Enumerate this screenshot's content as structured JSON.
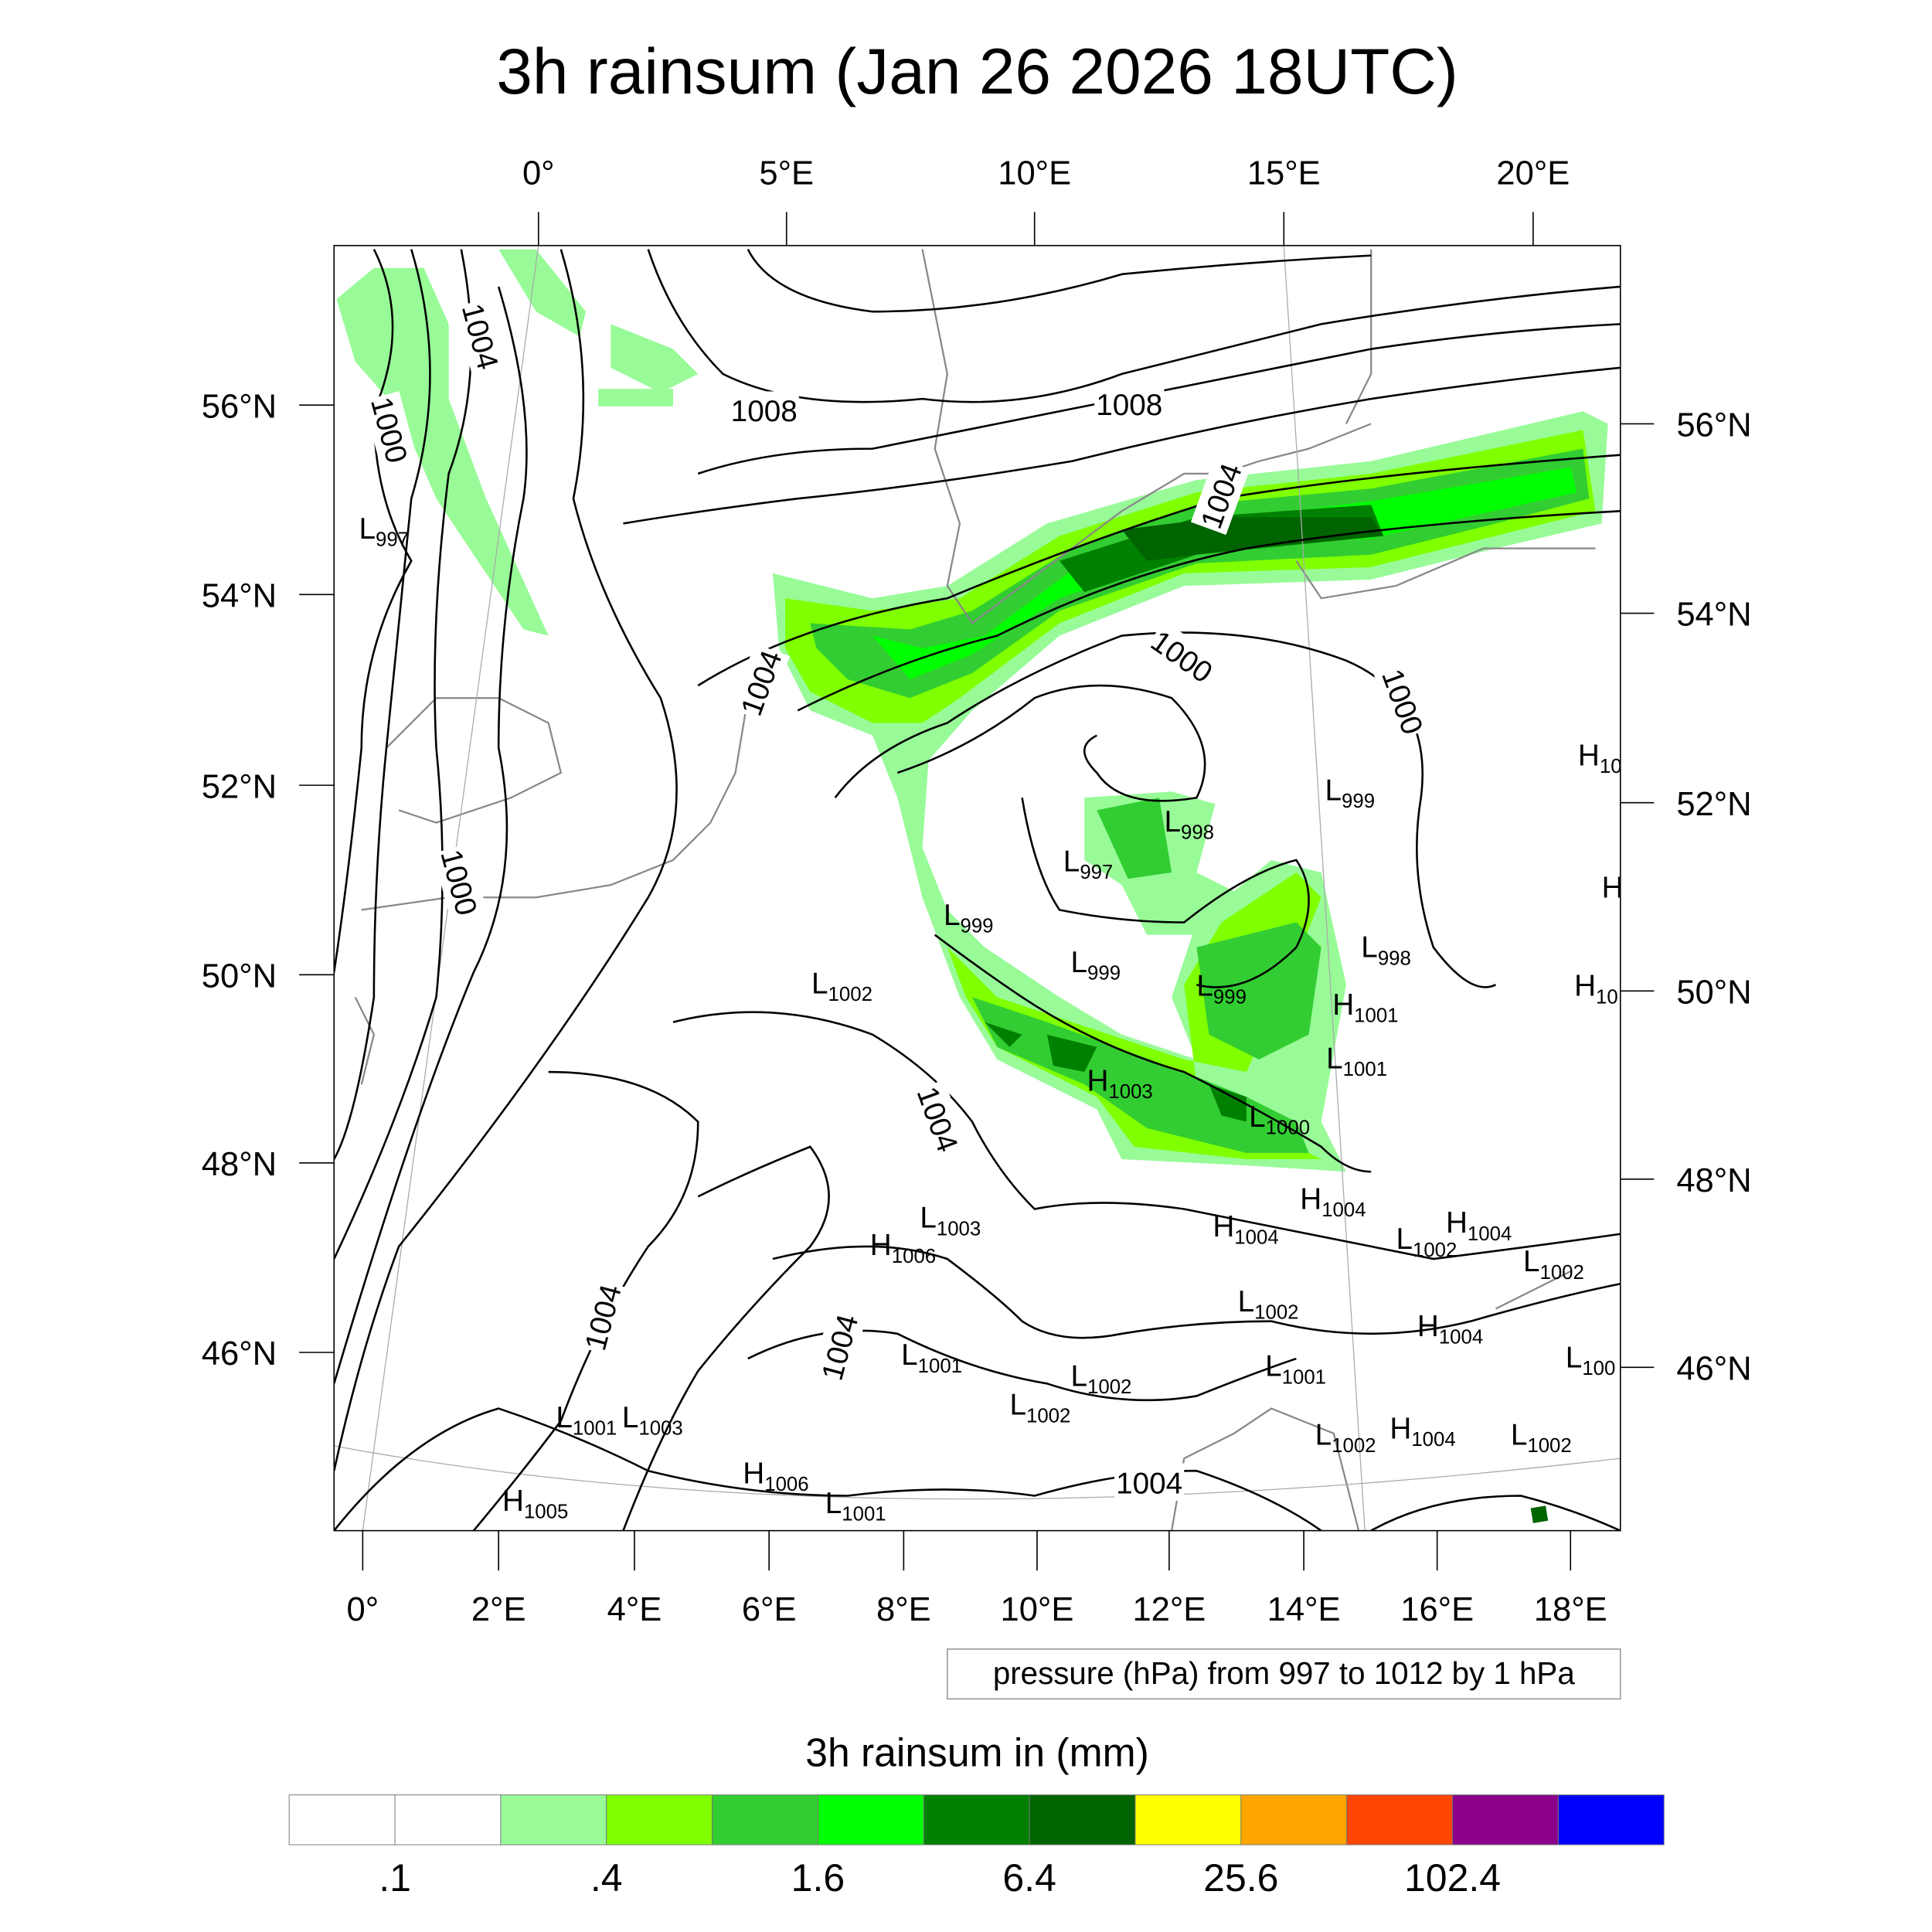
{
  "chart_data": {
    "type": "heatmap",
    "title": "3h rainsum (Jan 26 2026 18UTC)",
    "subtitle_box": "pressure (hPa) from 997 to 1012 by 1 hPa",
    "colorbar": {
      "title": "3h rainsum in (mm)",
      "colors": [
        "#ffffff",
        "#ffffff",
        "#98fb98",
        "#7fff00",
        "#32cd32",
        "#00ff00",
        "#008000",
        "#006400",
        "#ffff00",
        "#ffa500",
        "#ff4500",
        "#8b008b",
        "#0000ff"
      ],
      "tick_labels": [
        ".1",
        ".4",
        "1.6",
        "6.4",
        "25.6",
        "102.4"
      ]
    },
    "axes": {
      "bottom_ticks": [
        "0°",
        "2°E",
        "4°E",
        "6°E",
        "8°E",
        "10°E",
        "12°E",
        "14°E",
        "16°E",
        "18°E"
      ],
      "top_ticks": [
        "0°",
        "5°E",
        "10°E",
        "15°E",
        "20°E"
      ],
      "left_ticks": [
        "56°N",
        "54°N",
        "52°N",
        "50°N",
        "48°N",
        "46°N"
      ],
      "right_ticks": [
        "56°N",
        "54°N",
        "52°N",
        "50°N",
        "48°N",
        "46°N"
      ]
    },
    "contour_labels": [
      "1004",
      "1000",
      "1008",
      "1008",
      "1004",
      "1004",
      "1000",
      "1000",
      "1000",
      "1004",
      "1004",
      "1004",
      "1004"
    ],
    "pressure_centers": [
      {
        "t": "L",
        "v": "997"
      },
      {
        "t": "L",
        "v": "998"
      },
      {
        "t": "L",
        "v": "997"
      },
      {
        "t": "L",
        "v": "999"
      },
      {
        "t": "L",
        "v": "999"
      },
      {
        "t": "L",
        "v": "999"
      },
      {
        "t": "L",
        "v": "998"
      },
      {
        "t": "L",
        "v": "1002"
      },
      {
        "t": "L",
        "v": "999"
      },
      {
        "t": "H",
        "v": "1001"
      },
      {
        "t": "L",
        "v": "1001"
      },
      {
        "t": "H",
        "v": "1003"
      },
      {
        "t": "L",
        "v": "1000"
      },
      {
        "t": "H",
        "v": "1004"
      },
      {
        "t": "H",
        "v": "1004"
      },
      {
        "t": "H",
        "v": "1004"
      },
      {
        "t": "L",
        "v": "1002"
      },
      {
        "t": "L",
        "v": "1002"
      },
      {
        "t": "L",
        "v": "1003"
      },
      {
        "t": "H",
        "v": "1006"
      },
      {
        "t": "L",
        "v": "1002"
      },
      {
        "t": "H",
        "v": "1004"
      },
      {
        "t": "L",
        "v": "1001"
      },
      {
        "t": "L",
        "v": "1002"
      },
      {
        "t": "L",
        "v": "1001"
      },
      {
        "t": "L",
        "v": "100"
      },
      {
        "t": "L",
        "v": "1002"
      },
      {
        "t": "L",
        "v": "1001"
      },
      {
        "t": "L",
        "v": "1003"
      },
      {
        "t": "L",
        "v": "1002"
      },
      {
        "t": "H",
        "v": "1004"
      },
      {
        "t": "L",
        "v": "1002"
      },
      {
        "t": "H",
        "v": "1006"
      },
      {
        "t": "H",
        "v": "1005"
      },
      {
        "t": "L",
        "v": "1001"
      },
      {
        "t": "H",
        "v": "10"
      },
      {
        "t": "H",
        "v": ""
      },
      {
        "t": "H",
        "v": "10"
      }
    ]
  }
}
